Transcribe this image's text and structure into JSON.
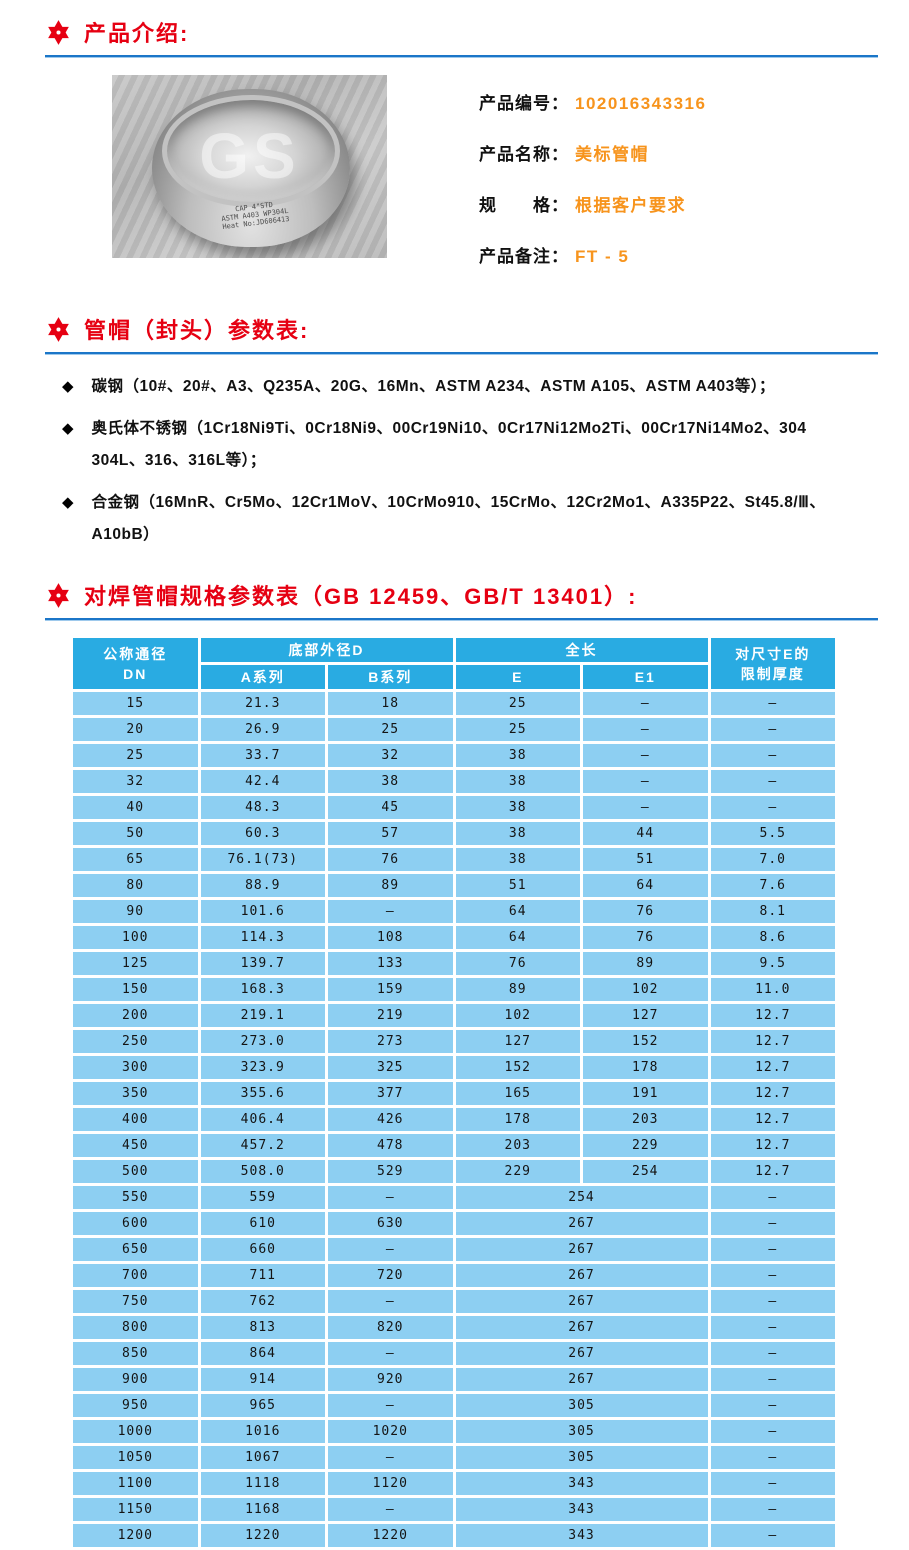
{
  "colors": {
    "heading_red": "#e60012",
    "rule_blue": "#1b76c8",
    "value_orange": "#f7941d",
    "table_header_bg": "#29abe2",
    "table_cell_bg": "#8dcff2"
  },
  "sections": {
    "intro_title": "产品介绍:",
    "params_title": "管帽（封头）参数表:",
    "spec_title": "对焊管帽规格参数表（GB 12459、GB/T 13401）:"
  },
  "product": {
    "photo": {
      "watermark": "GS",
      "stamp_lines": [
        "CAP 4\"STD",
        "ASTM A403 WP304L",
        "Heat No:JD606413"
      ]
    },
    "fields": [
      {
        "label": "产品编号：",
        "value": "102016343316"
      },
      {
        "label": "产品名称：",
        "value": "美标管帽"
      },
      {
        "label": "规　　格：",
        "value": "根据客户要求"
      },
      {
        "label": "产品备注：",
        "value": "FT - 5"
      }
    ]
  },
  "materials": [
    "碳钢（10#、20#、A3、Q235A、20G、16Mn、ASTM A234、ASTM A105、ASTM A403等）；",
    "奥氏体不锈钢（1Cr18Ni9Ti、0Cr18Ni9、00Cr19Ni10、0Cr17Ni12Mo2Ti、00Cr17Ni14Mo2、304\n304L、316、316L等）；",
    "合金钢（16MnR、Cr5Mo、12Cr1MoV、10CrMo910、15CrMo、12Cr2Mo1、A335P22、St45.8/Ⅲ、\nA10bB）"
  ],
  "spec_table": {
    "header": {
      "dn_top": "公称通径",
      "dn_bottom": "DN",
      "group_d": "底部外径D",
      "col_a": "A系列",
      "col_b": "B系列",
      "group_len": "全长",
      "col_e": "E",
      "col_e1": "E1",
      "limit_top": "对尺寸E的",
      "limit_bottom": "限制厚度"
    },
    "rows": [
      [
        "15",
        "21.3",
        "18",
        "25",
        "–",
        "–"
      ],
      [
        "20",
        "26.9",
        "25",
        "25",
        "–",
        "–"
      ],
      [
        "25",
        "33.7",
        "32",
        "38",
        "–",
        "–"
      ],
      [
        "32",
        "42.4",
        "38",
        "38",
        "–",
        "–"
      ],
      [
        "40",
        "48.3",
        "45",
        "38",
        "–",
        "–"
      ],
      [
        "50",
        "60.3",
        "57",
        "38",
        "44",
        "5.5"
      ],
      [
        "65",
        "76.1(73)",
        "76",
        "38",
        "51",
        "7.0"
      ],
      [
        "80",
        "88.9",
        "89",
        "51",
        "64",
        "7.6"
      ],
      [
        "90",
        "101.6",
        "–",
        "64",
        "76",
        "8.1"
      ],
      [
        "100",
        "114.3",
        "108",
        "64",
        "76",
        "8.6"
      ],
      [
        "125",
        "139.7",
        "133",
        "76",
        "89",
        "9.5"
      ],
      [
        "150",
        "168.3",
        "159",
        "89",
        "102",
        "11.0"
      ],
      [
        "200",
        "219.1",
        "219",
        "102",
        "127",
        "12.7"
      ],
      [
        "250",
        "273.0",
        "273",
        "127",
        "152",
        "12.7"
      ],
      [
        "300",
        "323.9",
        "325",
        "152",
        "178",
        "12.7"
      ],
      [
        "350",
        "355.6",
        "377",
        "165",
        "191",
        "12.7"
      ],
      [
        "400",
        "406.4",
        "426",
        "178",
        "203",
        "12.7"
      ],
      [
        "450",
        "457.2",
        "478",
        "203",
        "229",
        "12.7"
      ],
      [
        "500",
        "508.0",
        "529",
        "229",
        "254",
        "12.7"
      ],
      [
        "550",
        "559",
        "–",
        "254",
        "–"
      ],
      [
        "600",
        "610",
        "630",
        "267",
        "–"
      ],
      [
        "650",
        "660",
        "–",
        "267",
        "–"
      ],
      [
        "700",
        "711",
        "720",
        "267",
        "–"
      ],
      [
        "750",
        "762",
        "–",
        "267",
        "–"
      ],
      [
        "800",
        "813",
        "820",
        "267",
        "–"
      ],
      [
        "850",
        "864",
        "–",
        "267",
        "–"
      ],
      [
        "900",
        "914",
        "920",
        "267",
        "–"
      ],
      [
        "950",
        "965",
        "–",
        "305",
        "–"
      ],
      [
        "1000",
        "1016",
        "1020",
        "305",
        "–"
      ],
      [
        "1050",
        "1067",
        "–",
        "305",
        "–"
      ],
      [
        "1100",
        "1118",
        "1120",
        "343",
        "–"
      ],
      [
        "1150",
        "1168",
        "–",
        "343",
        "–"
      ],
      [
        "1200",
        "1220",
        "1220",
        "343",
        "–"
      ]
    ]
  }
}
